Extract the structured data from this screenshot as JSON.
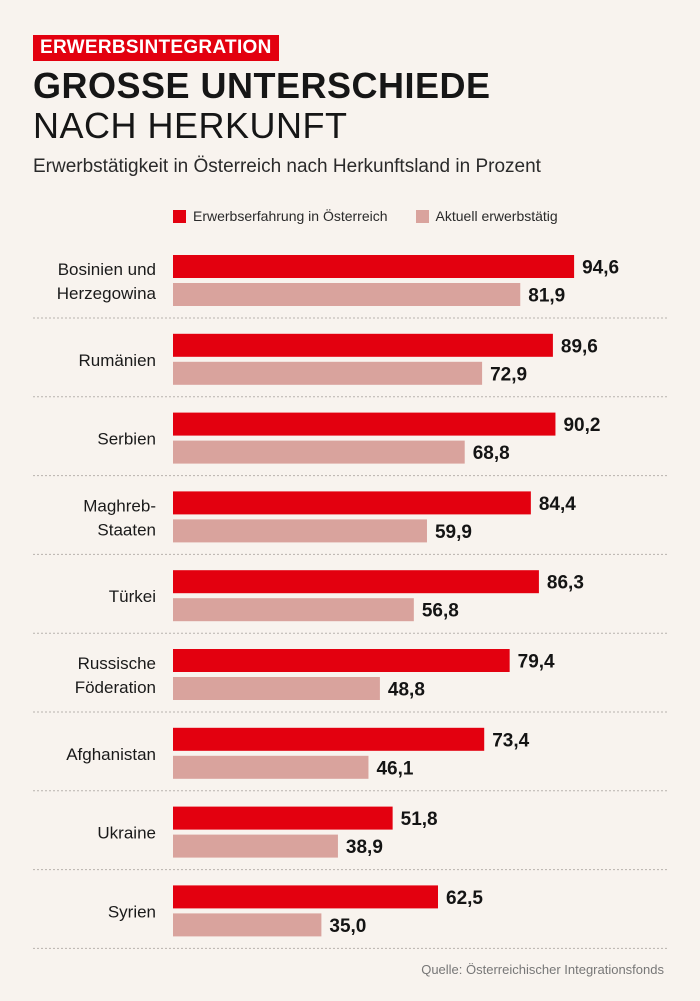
{
  "header": {
    "kicker": "ERWERBSINTEGRATION",
    "title_line1": "GROSSE UNTERSCHIEDE",
    "title_line2": "NACH HERKUNFT",
    "subtitle": "Erwerbstätigkeit in Österreich nach Herkunftsland in Prozent"
  },
  "legend": {
    "series1": "Erwerbserfahrung in Österreich",
    "series2": "Aktuell erwerbstätig"
  },
  "colors": {
    "series1": "#e3000f",
    "series2": "#d9a39d",
    "kicker_bg": "#e3000f",
    "background": "#f8f3ee"
  },
  "source": "Quelle: Österreichischer Integrationsfonds",
  "chart_data": {
    "type": "bar",
    "orientation": "horizontal",
    "categories": [
      [
        "Bosinien und",
        "Herzegowina"
      ],
      [
        "Rumänien"
      ],
      [
        "Serbien"
      ],
      [
        "Maghreb-",
        "Staaten"
      ],
      [
        "Türkei"
      ],
      [
        "Russische",
        "Föderation"
      ],
      [
        "Afghanistan"
      ],
      [
        "Ukraine"
      ],
      [
        "Syrien"
      ]
    ],
    "series": [
      {
        "name": "Erwerbserfahrung in Österreich",
        "values": [
          94.6,
          89.6,
          90.2,
          84.4,
          86.3,
          79.4,
          73.4,
          51.8,
          62.5
        ],
        "labels": [
          "94,6",
          "89,6",
          "90,2",
          "84,4",
          "86,3",
          "79,4",
          "73,4",
          "51,8",
          "62,5"
        ]
      },
      {
        "name": "Aktuell erwerbstätig",
        "values": [
          81.9,
          72.9,
          68.8,
          59.9,
          56.8,
          48.8,
          46.1,
          38.9,
          35.0
        ],
        "labels": [
          "81,9",
          "72,9",
          "68,8",
          "59,9",
          "56,8",
          "48,8",
          "46,1",
          "38,9",
          "35,0"
        ]
      }
    ],
    "xlim": [
      0,
      100
    ],
    "grid": false,
    "legend_position": "top",
    "title": "GROSSE UNTERSCHIEDE NACH HERKUNFT",
    "xlabel": "",
    "ylabel": ""
  }
}
